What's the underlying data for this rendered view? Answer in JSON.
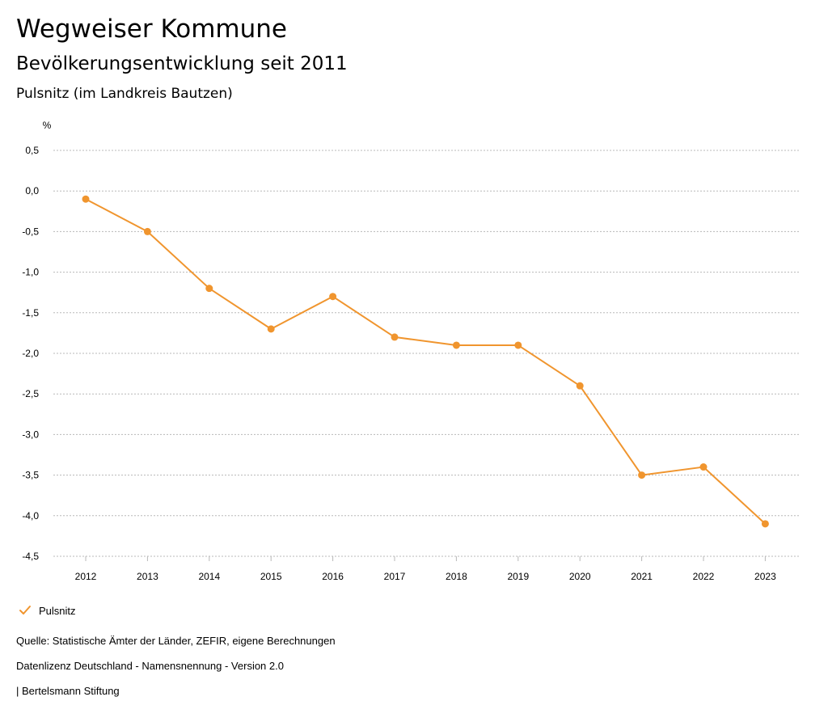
{
  "header": {
    "title": "Wegweiser Kommune",
    "subtitle": "Bevölkerungsentwicklung seit 2011",
    "region": "Pulsnitz (im Landkreis Bautzen)"
  },
  "legend": {
    "label": "Pulsnitz"
  },
  "footer": {
    "source": "Quelle: Statistische Ämter der Länder, ZEFIR, eigene Berechnungen",
    "license": "Datenlizenz Deutschland - Namensnennung - Version 2.0",
    "credit": "| Bertelsmann Stiftung"
  },
  "colors": {
    "series": "#f0952e",
    "grid": "#b8b8b8",
    "text": "#000000"
  },
  "chart_data": {
    "type": "line",
    "title": "Bevölkerungsentwicklung seit 2011",
    "xlabel": "",
    "ylabel": "%",
    "grid": true,
    "legend_position": "bottom-left",
    "ylim": [
      -4.5,
      0.5
    ],
    "yticks": [
      0.5,
      0.0,
      -0.5,
      -1.0,
      -1.5,
      -2.0,
      -2.5,
      -3.0,
      -3.5,
      -4.0,
      -4.5
    ],
    "ytick_labels": [
      "0,5",
      "0,0",
      "-0,5",
      "-1,0",
      "-1,5",
      "-2,0",
      "-2,5",
      "-3,0",
      "-3,5",
      "-4,0",
      "-4,5"
    ],
    "categories": [
      "2012",
      "2013",
      "2014",
      "2015",
      "2016",
      "2017",
      "2018",
      "2019",
      "2020",
      "2021",
      "2022",
      "2023"
    ],
    "series": [
      {
        "name": "Pulsnitz",
        "values": [
          -0.1,
          -0.5,
          -1.2,
          -1.7,
          -1.3,
          -1.8,
          -1.9,
          -1.9,
          -2.4,
          -3.5,
          -3.4,
          -4.1
        ]
      }
    ]
  }
}
